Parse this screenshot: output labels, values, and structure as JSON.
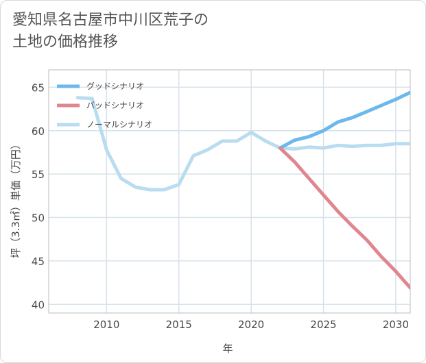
{
  "title_lines": [
    "愛知県名古屋市中川区荒子の",
    "土地の価格推移"
  ],
  "chart_data": {
    "type": "line",
    "xlabel": "年",
    "ylabel": "坪（3.3㎡）単価（万円）",
    "xlim": [
      2006,
      2031
    ],
    "ylim": [
      39,
      67
    ],
    "xticks": [
      2010,
      2015,
      2020,
      2025,
      2030
    ],
    "yticks": [
      40,
      45,
      50,
      55,
      60,
      65
    ],
    "grid": true,
    "legend_position": "top-left",
    "series": [
      {
        "name": "グッドシナリオ",
        "color": "#6cb8ec",
        "x": [
          2022,
          2023,
          2024,
          2025,
          2026,
          2027,
          2028,
          2029,
          2030,
          2031
        ],
        "y": [
          58.0,
          58.9,
          59.3,
          60.0,
          61.0,
          61.5,
          62.2,
          62.9,
          63.6,
          64.4
        ]
      },
      {
        "name": "バッドシナリオ",
        "color": "#e0868f",
        "x": [
          2022,
          2023,
          2024,
          2025,
          2026,
          2027,
          2028,
          2029,
          2030,
          2031
        ],
        "y": [
          58.0,
          56.4,
          54.5,
          52.6,
          50.7,
          49.0,
          47.4,
          45.5,
          43.8,
          41.9
        ]
      },
      {
        "name": "ノーマルシナリオ",
        "color": "#b9dcf0",
        "x": [
          2008,
          2009,
          2010,
          2011,
          2012,
          2013,
          2014,
          2015,
          2016,
          2017,
          2018,
          2019,
          2020,
          2021,
          2022,
          2023,
          2024,
          2025,
          2026,
          2027,
          2028,
          2029,
          2030,
          2031
        ],
        "y": [
          63.8,
          63.7,
          57.8,
          54.5,
          53.5,
          53.2,
          53.2,
          53.8,
          57.1,
          57.8,
          58.8,
          58.8,
          59.8,
          58.8,
          58.0,
          57.9,
          58.1,
          58.0,
          58.3,
          58.2,
          58.3,
          58.3,
          58.5,
          58.5
        ]
      }
    ]
  }
}
